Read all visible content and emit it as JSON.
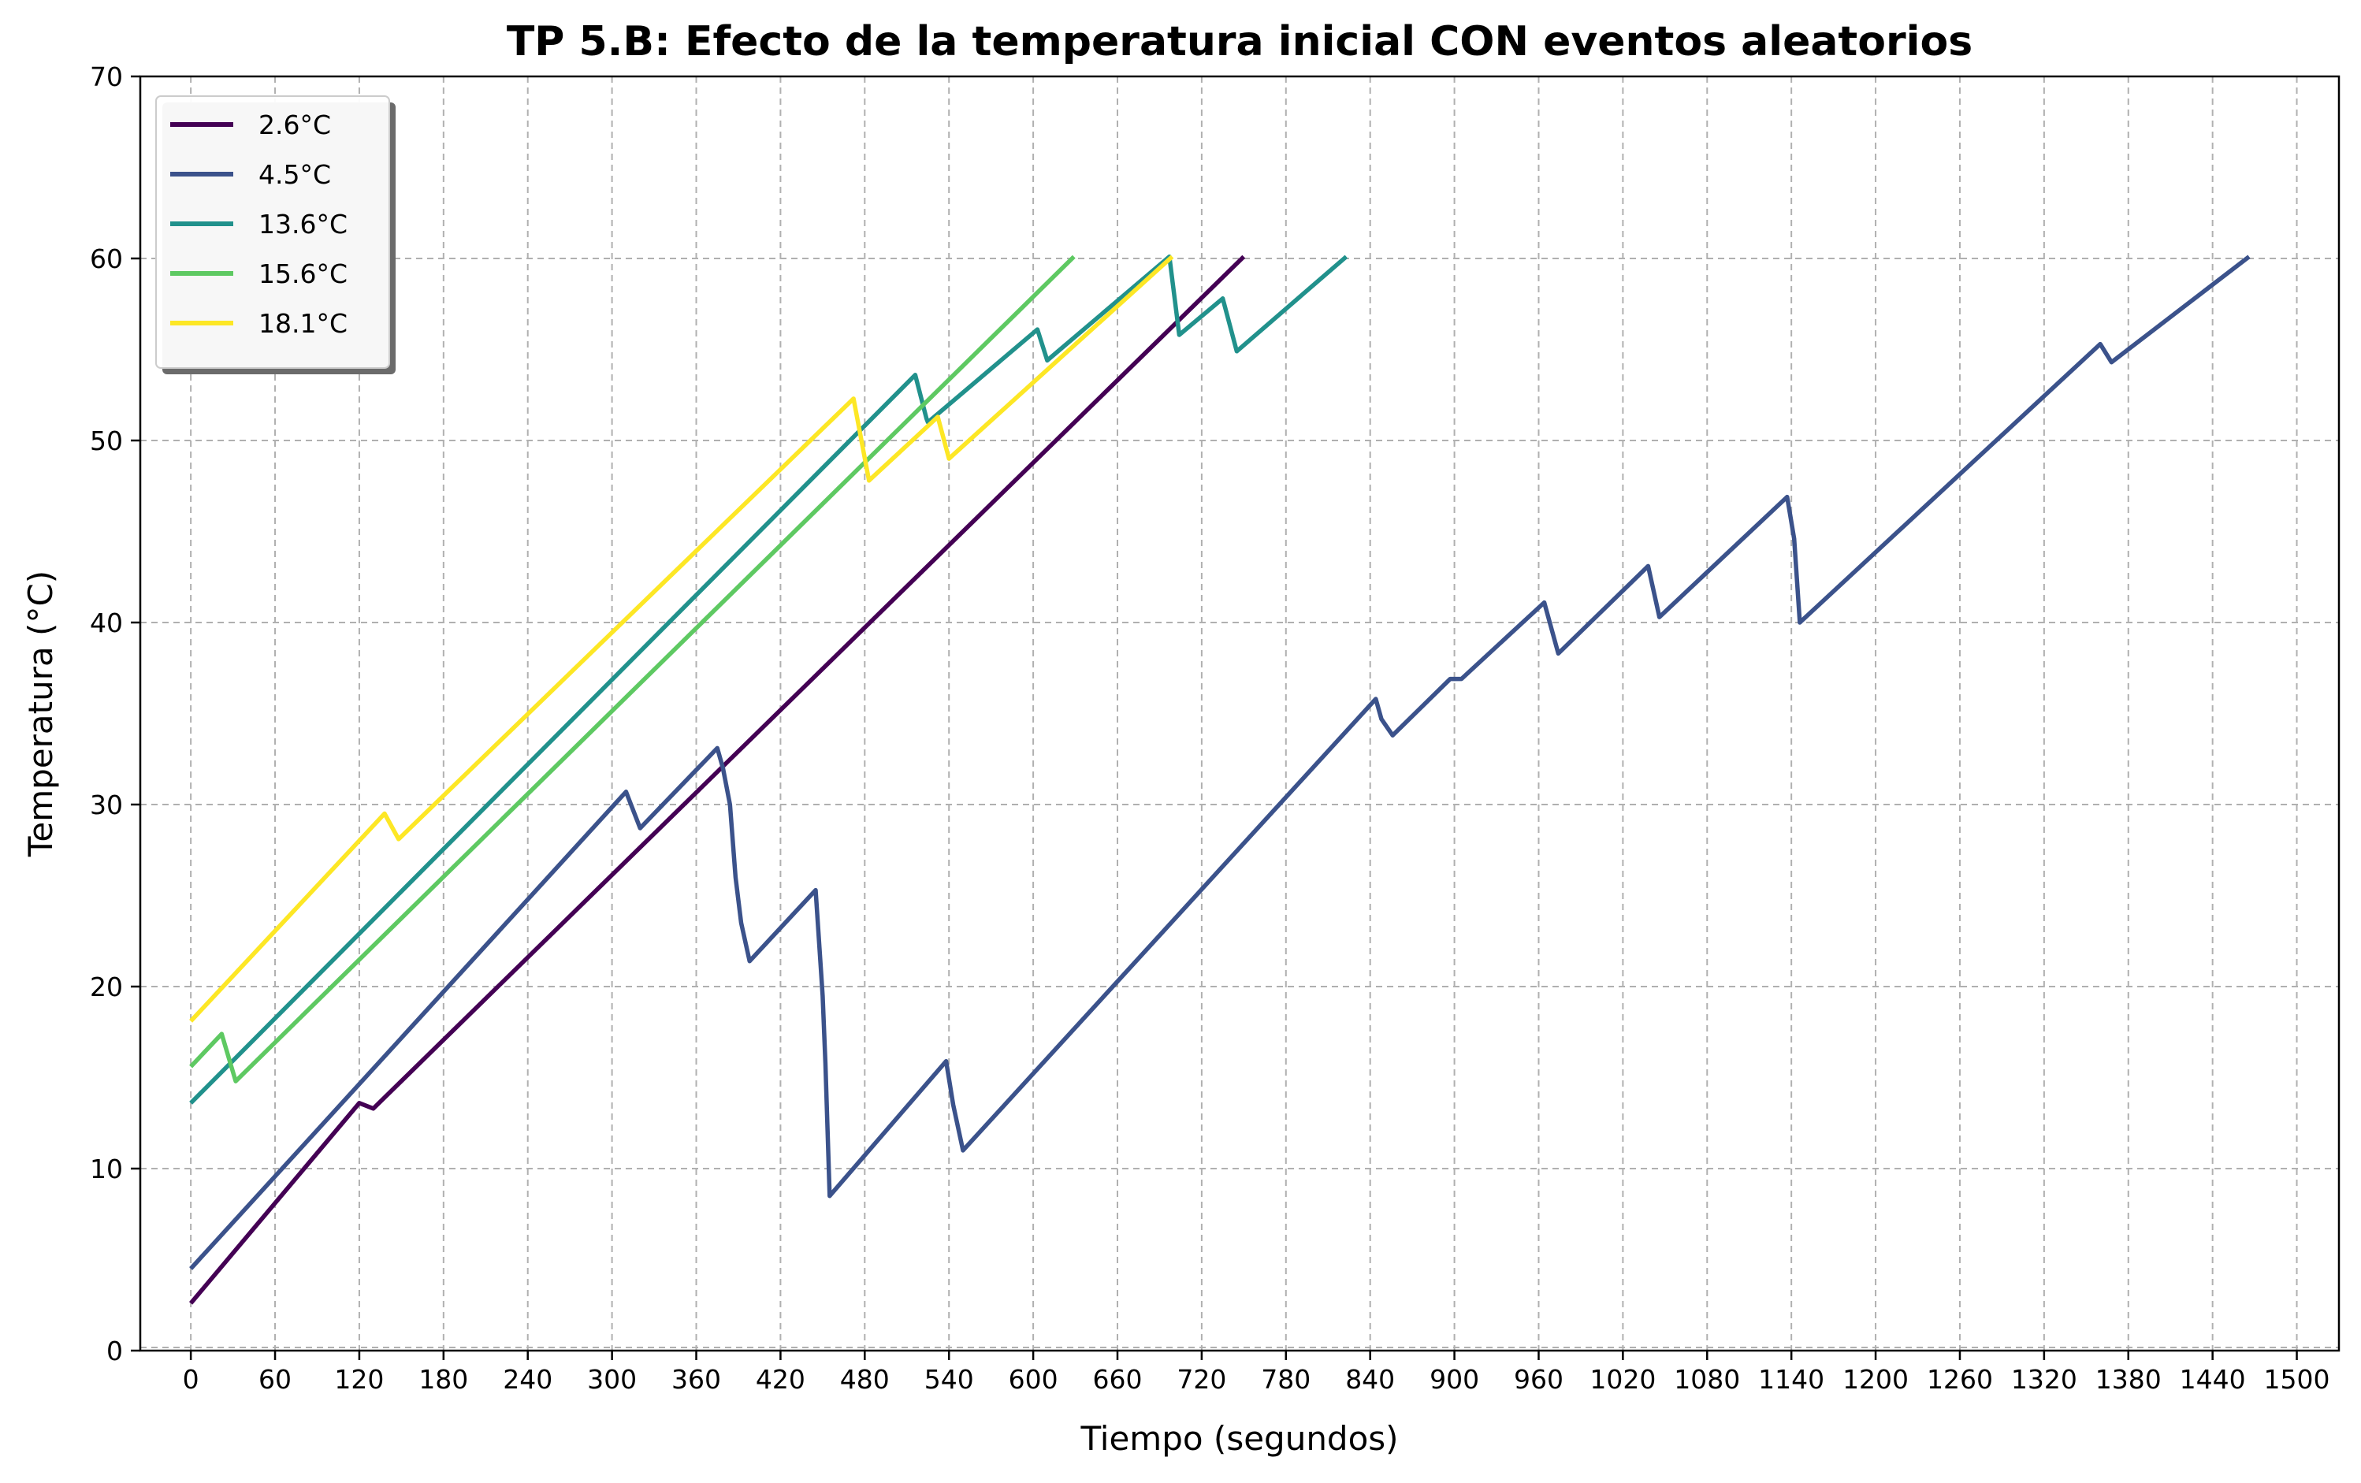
{
  "chart_data": {
    "type": "line",
    "title": "TP 5.B: Efecto de la temperatura inicial CON eventos aleatorios",
    "xlabel": "Tiempo (segundos)",
    "ylabel": "Temperatura (°C)",
    "xlim": [
      -36,
      1530
    ],
    "ylim": [
      0,
      70
    ],
    "xticks": [
      0,
      60,
      120,
      180,
      240,
      300,
      360,
      420,
      480,
      540,
      600,
      660,
      720,
      780,
      840,
      900,
      960,
      1020,
      1080,
      1140,
      1200,
      1260,
      1320,
      1380,
      1440,
      1500
    ],
    "yticks": [
      0,
      10,
      20,
      30,
      40,
      50,
      60,
      70
    ],
    "grid": true,
    "legend_position": "top-left",
    "series": [
      {
        "name": "2.6°C",
        "color": "#440154",
        "points": [
          [
            0,
            2.6
          ],
          [
            120,
            13.6
          ],
          [
            130,
            13.3
          ],
          [
            750,
            60.1
          ]
        ]
      },
      {
        "name": "4.5°C",
        "color": "#3b528b",
        "points": [
          [
            0,
            4.5
          ],
          [
            310,
            30.7
          ],
          [
            320,
            28.7
          ],
          [
            375,
            33.1
          ],
          [
            379,
            32.0
          ],
          [
            384,
            30.0
          ],
          [
            388,
            26.0
          ],
          [
            392,
            23.5
          ],
          [
            398,
            21.4
          ],
          [
            445,
            25.3
          ],
          [
            450,
            19.5
          ],
          [
            452,
            15.8
          ],
          [
            455,
            8.5
          ],
          [
            538,
            15.9
          ],
          [
            543,
            13.5
          ],
          [
            550,
            11.0
          ],
          [
            844,
            35.8
          ],
          [
            848,
            34.7
          ],
          [
            856,
            33.8
          ],
          [
            897,
            36.9
          ],
          [
            905,
            36.9
          ],
          [
            964,
            41.1
          ],
          [
            974,
            38.3
          ],
          [
            1038,
            43.1
          ],
          [
            1046,
            40.3
          ],
          [
            1137,
            46.9
          ],
          [
            1142,
            44.6
          ],
          [
            1146,
            40.0
          ],
          [
            1360,
            55.3
          ],
          [
            1368,
            54.3
          ],
          [
            1466,
            60.1
          ]
        ]
      },
      {
        "name": "13.6°C",
        "color": "#21918c",
        "points": [
          [
            0,
            13.6
          ],
          [
            516,
            53.6
          ],
          [
            524,
            51.2
          ],
          [
            525,
            51.0
          ],
          [
            603,
            56.1
          ],
          [
            610,
            54.4
          ],
          [
            697,
            60.1
          ],
          [
            704,
            55.8
          ],
          [
            735,
            57.8
          ],
          [
            745,
            54.9
          ],
          [
            823,
            60.1
          ]
        ]
      },
      {
        "name": "15.6°C",
        "color": "#5ec962",
        "points": [
          [
            0,
            15.6
          ],
          [
            22,
            17.4
          ],
          [
            32,
            14.8
          ],
          [
            629,
            60.1
          ]
        ]
      },
      {
        "name": "18.1°C",
        "color": "#fde725",
        "points": [
          [
            0,
            18.1
          ],
          [
            138,
            29.5
          ],
          [
            148,
            28.1
          ],
          [
            472,
            52.3
          ],
          [
            483,
            47.8
          ],
          [
            532,
            51.3
          ],
          [
            540,
            49.0
          ],
          [
            699,
            60.1
          ]
        ]
      }
    ]
  }
}
